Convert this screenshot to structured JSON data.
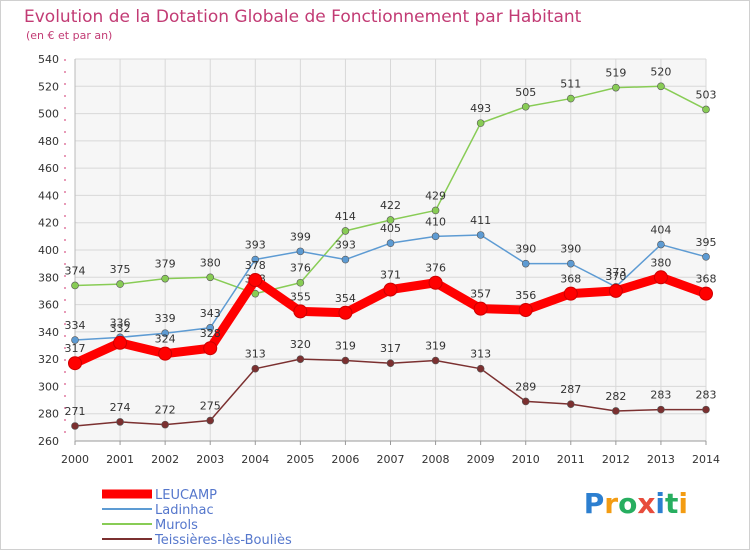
{
  "chart_data": {
    "type": "line",
    "title": "Evolution de la Dotation Globale de Fonctionnement par Habitant",
    "subtitle": "(en € et par an)",
    "xlabel": "",
    "ylabel": "",
    "ylim": [
      260,
      540
    ],
    "yticks": [
      260,
      280,
      300,
      320,
      340,
      360,
      380,
      400,
      420,
      440,
      460,
      480,
      500,
      520,
      540
    ],
    "categories": [
      "2000",
      "2001",
      "2002",
      "2003",
      "2004",
      "2005",
      "2006",
      "2007",
      "2008",
      "2009",
      "2010",
      "2011",
      "2012",
      "2013",
      "2014"
    ],
    "grid": true,
    "legend_position": "bottom-left",
    "series": [
      {
        "name": "Murols",
        "color": "#88cc55",
        "values": [
          374,
          375,
          379,
          380,
          368,
          376,
          414,
          422,
          429,
          493,
          505,
          511,
          519,
          520,
          503
        ]
      },
      {
        "name": "Ladinhac",
        "color": "#5d9bd3",
        "values": [
          334,
          336,
          339,
          343,
          393,
          399,
          393,
          405,
          410,
          411,
          390,
          390,
          373,
          404,
          395
        ]
      },
      {
        "name": "Teissières-lès-Bouliès",
        "color": "#7b3030",
        "values": [
          271,
          274,
          272,
          275,
          313,
          320,
          319,
          317,
          319,
          313,
          289,
          287,
          282,
          283,
          283
        ]
      },
      {
        "name": "LEUCAMP",
        "color": "#ff0000",
        "values": [
          317,
          332,
          324,
          328,
          378,
          355,
          354,
          371,
          376,
          357,
          356,
          368,
          370,
          380,
          368
        ]
      }
    ],
    "legend_order": [
      "LEUCAMP",
      "Ladinhac",
      "Murols",
      "Teissières-lès-Bouliès"
    ],
    "logo": {
      "text": "Proxiti",
      "letters": [
        "P",
        "r",
        "o",
        "x",
        "i",
        "t",
        "i"
      ],
      "colors": [
        "#2c7fd0",
        "#f39c12",
        "#27ae60",
        "#e74c3c",
        "#2c7fd0",
        "#27ae60",
        "#f39c12"
      ]
    }
  }
}
